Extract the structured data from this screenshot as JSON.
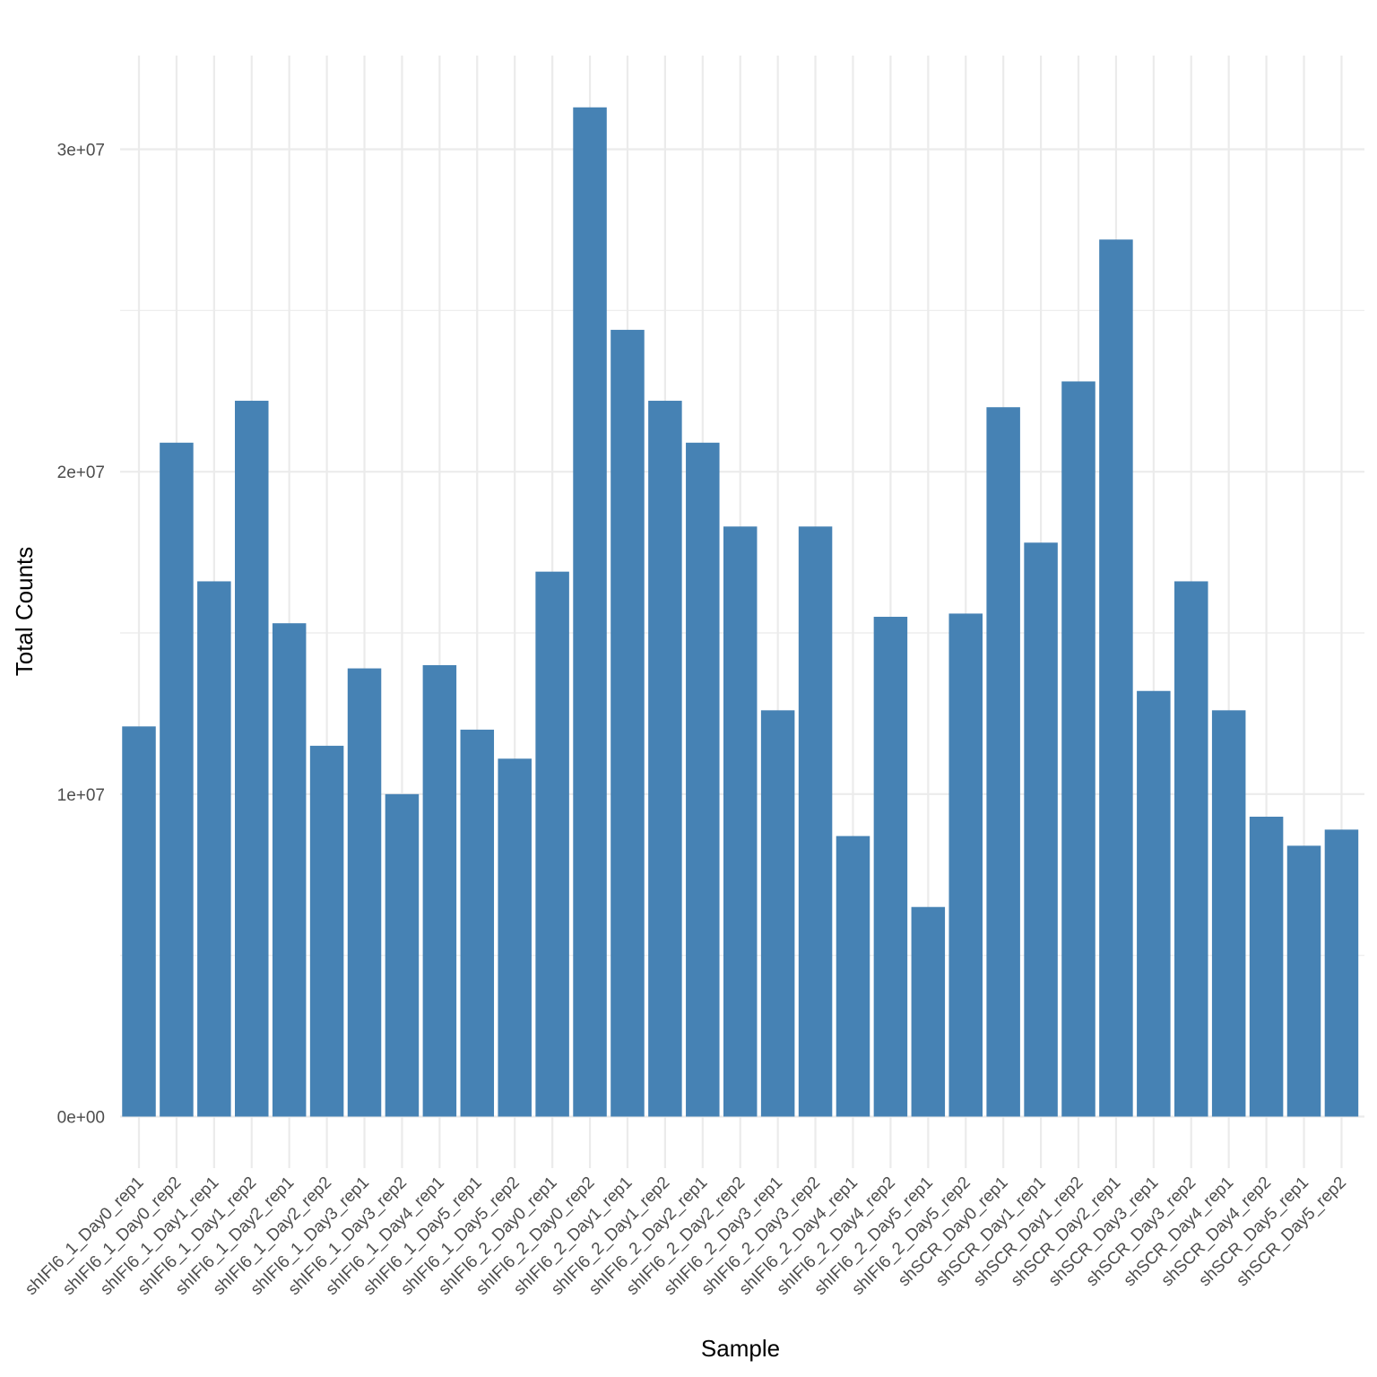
{
  "chart_data": {
    "type": "bar",
    "title": "",
    "xlabel": "Sample",
    "ylabel": "Total Counts",
    "ylim": [
      0,
      32500000
    ],
    "yticks": [
      0,
      10000000,
      20000000,
      30000000
    ],
    "ytick_labels": [
      "0e+00",
      "1e+07",
      "2e+07",
      "3e+07"
    ],
    "grid": true,
    "bar_color": "#4682B4",
    "categories": [
      "shIFI6_1_Day0_rep1",
      "shIFI6_1_Day0_rep2",
      "shIFI6_1_Day1_rep1",
      "shIFI6_1_Day1_rep2",
      "shIFI6_1_Day2_rep1",
      "shIFI6_1_Day2_rep2",
      "shIFI6_1_Day3_rep1",
      "shIFI6_1_Day3_rep2",
      "shIFI6_1_Day4_rep1",
      "shIFI6_1_Day5_rep1",
      "shIFI6_1_Day5_rep2",
      "shIFI6_2_Day0_rep1",
      "shIFI6_2_Day0_rep2",
      "shIFI6_2_Day1_rep1",
      "shIFI6_2_Day1_rep2",
      "shIFI6_2_Day2_rep1",
      "shIFI6_2_Day2_rep2",
      "shIFI6_2_Day3_rep1",
      "shIFI6_2_Day3_rep2",
      "shIFI6_2_Day4_rep1",
      "shIFI6_2_Day4_rep2",
      "shIFI6_2_Day5_rep1",
      "shIFI6_2_Day5_rep2",
      "shSCR_Day0_rep1",
      "shSCR_Day1_rep1",
      "shSCR_Day1_rep2",
      "shSCR_Day2_rep1",
      "shSCR_Day3_rep1",
      "shSCR_Day3_rep2",
      "shSCR_Day4_rep1",
      "shSCR_Day4_rep2",
      "shSCR_Day5_rep1",
      "shSCR_Day5_rep2"
    ],
    "values": [
      12100000,
      20900000,
      16600000,
      22200000,
      15300000,
      11500000,
      13900000,
      10000000,
      14000000,
      12000000,
      11100000,
      16900000,
      31300000,
      24400000,
      22200000,
      20900000,
      18300000,
      12600000,
      18300000,
      8700000,
      15500000,
      6500000,
      15600000,
      22000000,
      17800000,
      22800000,
      27200000,
      13200000,
      16600000,
      12600000,
      9300000,
      8400000,
      8900000
    ]
  }
}
